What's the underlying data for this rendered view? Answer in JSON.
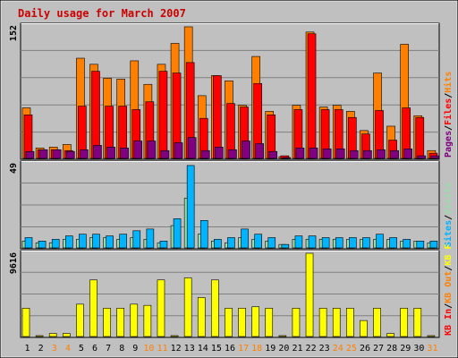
{
  "title": "Daily usage for March 2007",
  "colors": {
    "title": "#cc0000",
    "background": "#c0c0c0",
    "plot_bg": "#c0c0c0",
    "hits": "#ff8000",
    "files": "#ff0000",
    "pages": "#800080",
    "visits": "#99ddaa",
    "sites": "#00b4ff",
    "kb": "#ffff00",
    "weekend": "#ff8000",
    "weekday": "#000000"
  },
  "chart_data": [
    {
      "type": "bar",
      "name": "requests-panel",
      "ymax_label": "152",
      "ylim": [
        0,
        152
      ],
      "legend": [
        "Pages",
        "Files",
        "Hits"
      ],
      "legend_sep": "/",
      "categories": [
        "1",
        "2",
        "3",
        "4",
        "5",
        "6",
        "7",
        "8",
        "9",
        "10",
        "11",
        "12",
        "13",
        "14",
        "15",
        "16",
        "17",
        "18",
        "19",
        "20",
        "21",
        "22",
        "23",
        "24",
        "25",
        "26",
        "27",
        "28",
        "29",
        "30",
        "31"
      ],
      "series": [
        {
          "name": "Hits",
          "values": [
            58,
            12,
            13,
            16,
            115,
            108,
            92,
            91,
            112,
            85,
            108,
            132,
            151,
            72,
            95,
            89,
            61,
            117,
            54,
            2,
            61,
            145,
            59,
            61,
            54,
            32,
            98,
            37,
            131,
            49,
            9
          ]
        },
        {
          "name": "Files",
          "values": [
            50,
            10,
            10,
            9,
            60,
            100,
            60,
            60,
            56,
            65,
            100,
            98,
            110,
            46,
            95,
            63,
            59,
            86,
            50,
            3,
            56,
            143,
            56,
            56,
            47,
            28,
            55,
            21,
            58,
            47,
            6
          ]
        },
        {
          "name": "Pages",
          "values": [
            8,
            10,
            10,
            8,
            10,
            15,
            13,
            12,
            20,
            20,
            9,
            18,
            24,
            9,
            13,
            10,
            20,
            17,
            8,
            1,
            12,
            12,
            11,
            11,
            9,
            9,
            10,
            9,
            11,
            3,
            3
          ]
        }
      ]
    },
    {
      "type": "bar",
      "name": "visits-panel",
      "ymax_label": "49",
      "ylim": [
        0,
        49
      ],
      "legend": [
        "Sites",
        "Visits"
      ],
      "legend_sep": "/",
      "categories": [
        "1",
        "2",
        "3",
        "4",
        "5",
        "6",
        "7",
        "8",
        "9",
        "10",
        "11",
        "12",
        "13",
        "14",
        "15",
        "16",
        "17",
        "18",
        "19",
        "20",
        "21",
        "22",
        "23",
        "24",
        "25",
        "26",
        "27",
        "28",
        "29",
        "30",
        "31"
      ],
      "series": [
        {
          "name": "Visits",
          "values": [
            4,
            3,
            3,
            5,
            5,
            6,
            6,
            5,
            6,
            5,
            3,
            13,
            29,
            8,
            4,
            3,
            6,
            5,
            4,
            2,
            5,
            5,
            5,
            5,
            5,
            5,
            5,
            5,
            4,
            4,
            3
          ]
        },
        {
          "name": "Sites",
          "values": [
            6,
            4,
            5,
            7,
            8,
            8,
            7,
            8,
            10,
            11,
            4,
            17,
            48,
            16,
            5,
            6,
            11,
            8,
            6,
            2,
            7,
            7,
            6,
            6,
            6,
            6,
            8,
            6,
            5,
            4,
            4
          ]
        }
      ]
    },
    {
      "type": "bar",
      "name": "kbytes-panel",
      "ymax_label": "9616",
      "ylim": [
        0,
        9616
      ],
      "legend": [
        "KB In",
        "KB Out",
        "KB F"
      ],
      "legend_sep": "/",
      "categories": [
        "1",
        "2",
        "3",
        "4",
        "5",
        "6",
        "7",
        "8",
        "9",
        "10",
        "11",
        "12",
        "13",
        "14",
        "15",
        "16",
        "17",
        "18",
        "19",
        "20",
        "21",
        "22",
        "23",
        "24",
        "25",
        "26",
        "27",
        "28",
        "29",
        "30",
        "31"
      ],
      "series": [
        {
          "name": "KB F",
          "values": [
            3274,
            0,
            355,
            355,
            3738,
            6539,
            3274,
            3274,
            3738,
            3601,
            6539,
            0,
            6773,
            4503,
            6539,
            3274,
            3274,
            3438,
            3274,
            0,
            3274,
            9616,
            3274,
            3274,
            3274,
            1848,
            3274,
            355,
            3274,
            3274,
            0
          ]
        }
      ]
    }
  ],
  "weekend_days": [
    "3",
    "4",
    "10",
    "11",
    "17",
    "18",
    "24",
    "25",
    "31"
  ]
}
